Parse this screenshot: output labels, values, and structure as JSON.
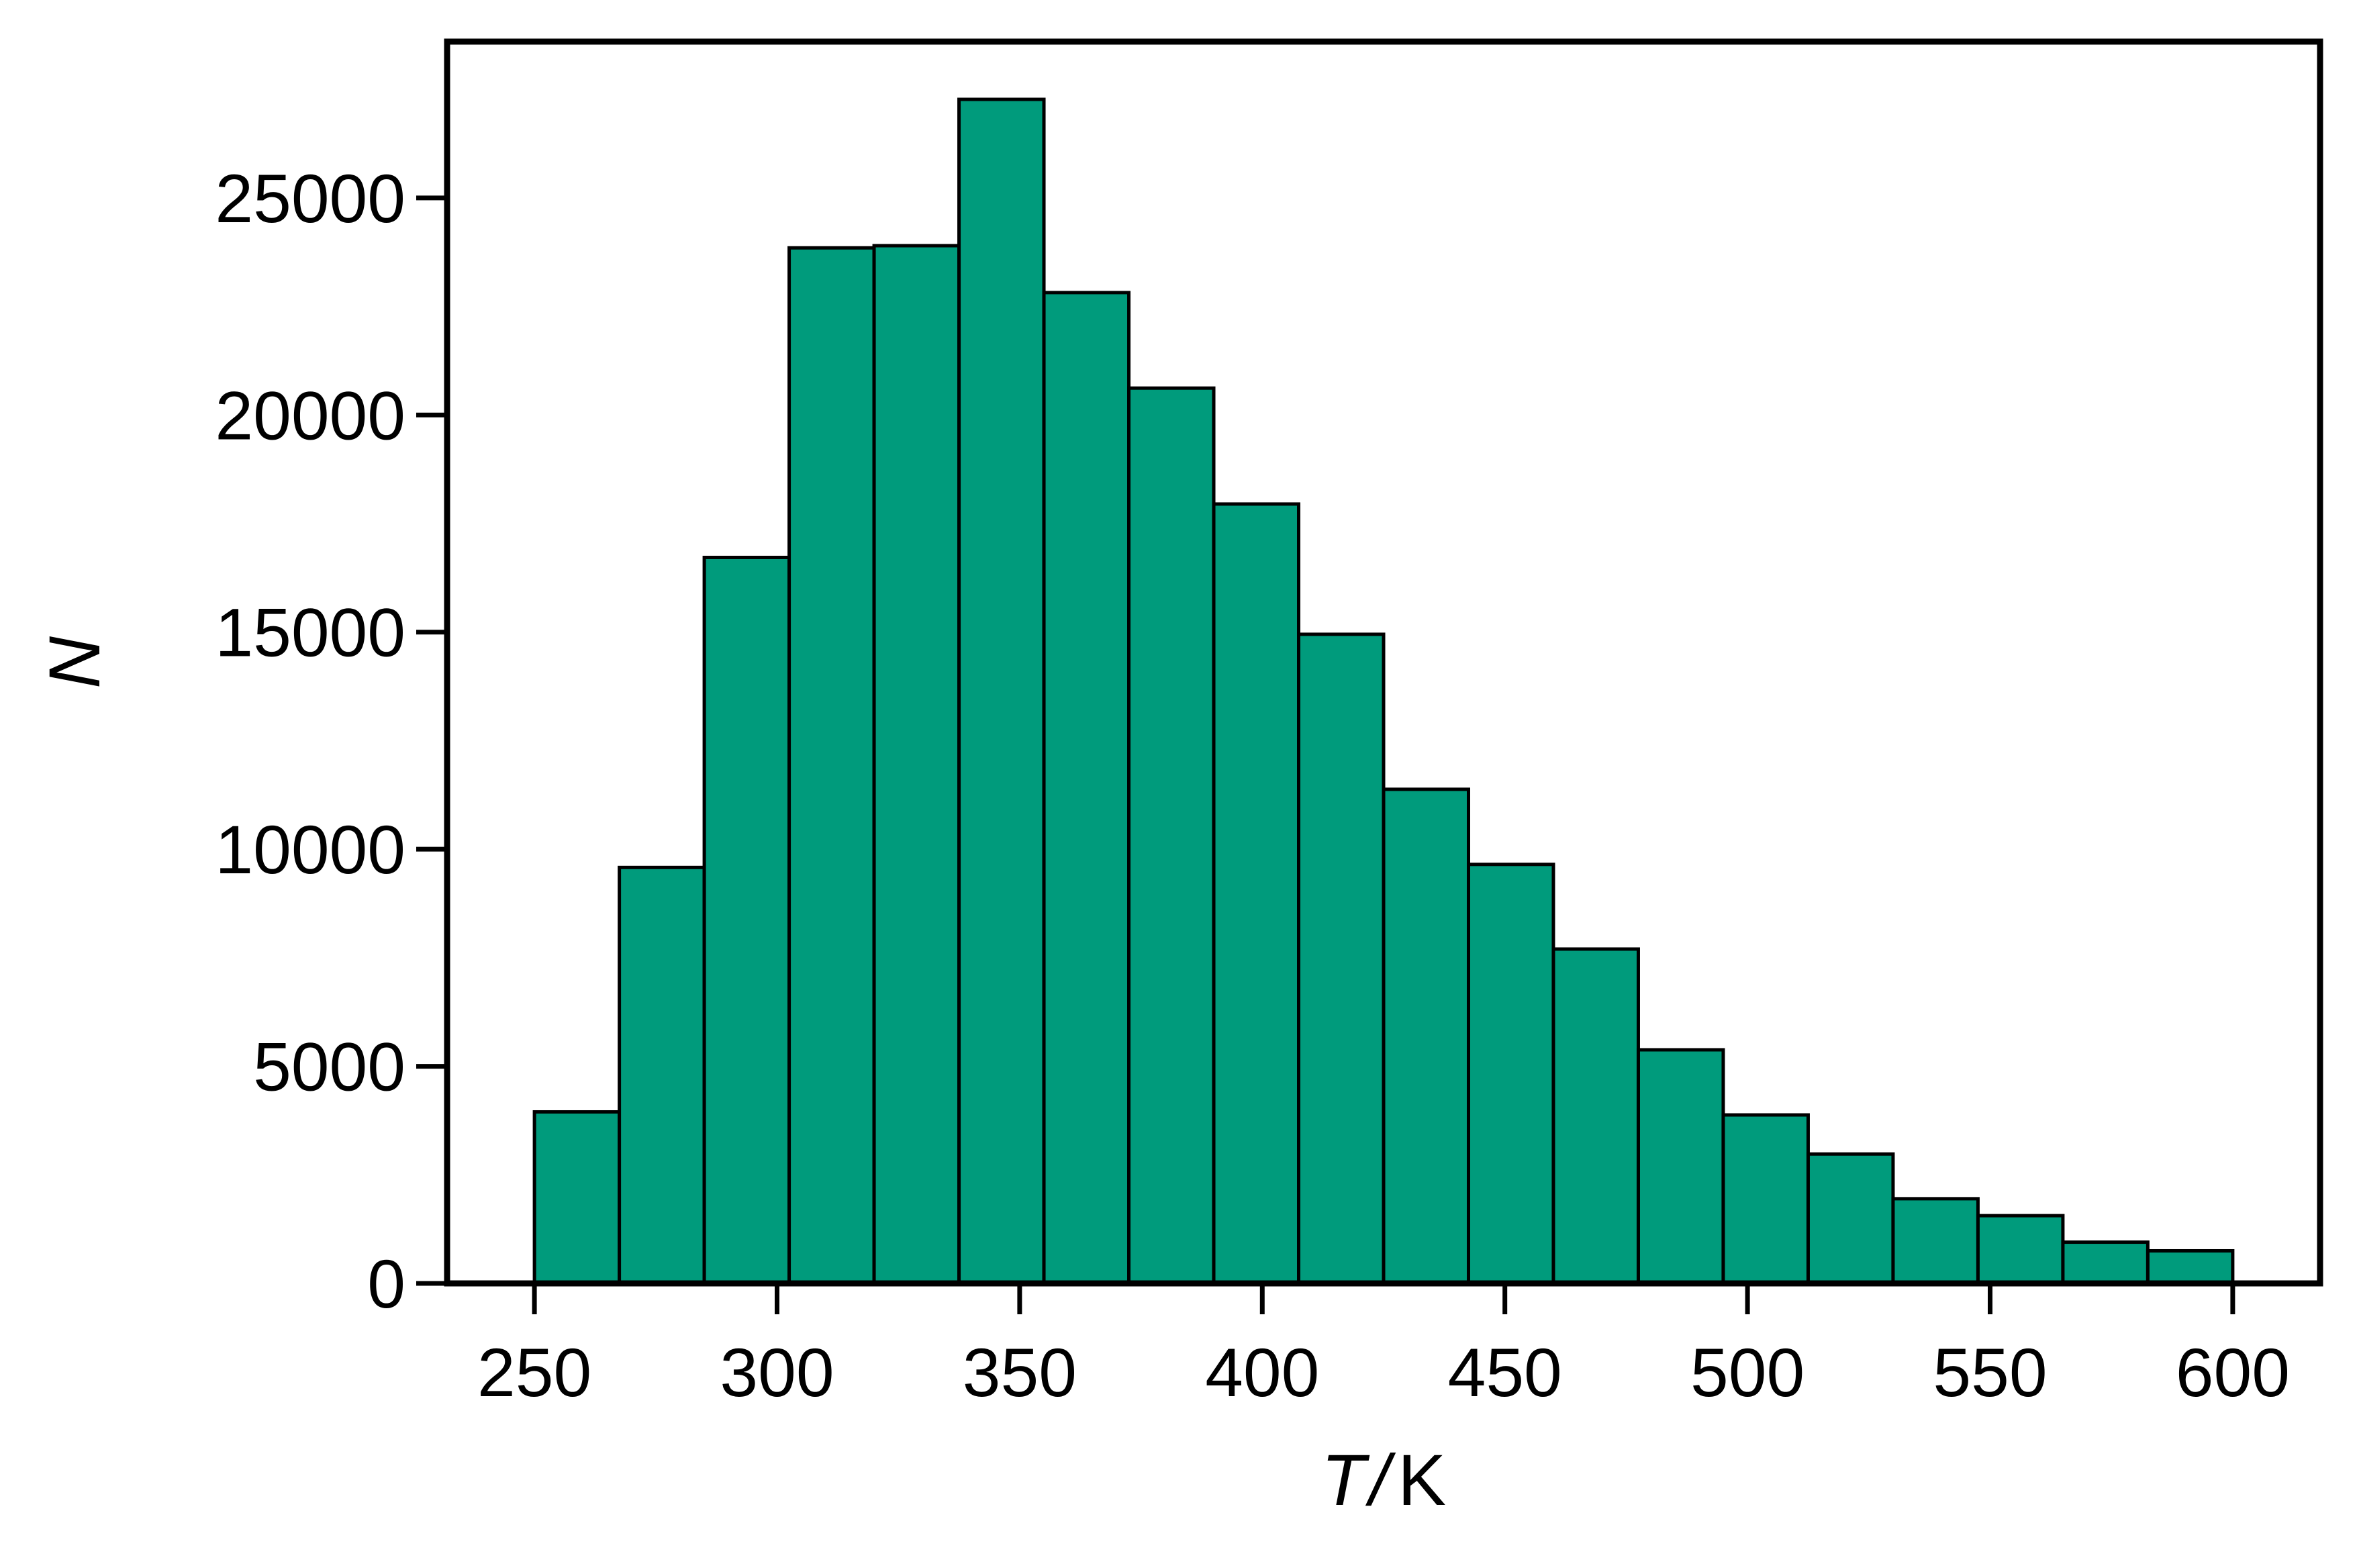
{
  "chart_data": {
    "type": "bar",
    "subtype": "histogram",
    "title": "",
    "xlabel": {
      "variable": "T",
      "unit": "K",
      "separator": "/"
    },
    "ylabel": "N",
    "xlim": [
      232,
      618
    ],
    "ylim": [
      0,
      28600
    ],
    "xticks": [
      250,
      300,
      350,
      400,
      450,
      500,
      550,
      600
    ],
    "yticks": [
      0,
      5000,
      10000,
      15000,
      20000,
      25000
    ],
    "bin_edges": [
      250,
      267.5,
      285,
      302.5,
      320,
      337.5,
      355,
      372.5,
      390,
      407.5,
      425,
      442.5,
      460,
      477.5,
      495,
      512.5,
      530,
      547.5,
      565,
      582.5,
      600
    ],
    "values": [
      3950,
      9580,
      16720,
      23850,
      23900,
      27270,
      22820,
      20620,
      17950,
      14950,
      11380,
      9650,
      7700,
      5380,
      3880,
      2980,
      1950,
      1560,
      950,
      750
    ],
    "bar_color": "#009b7c",
    "edge_color": "#000000",
    "grid": false
  }
}
